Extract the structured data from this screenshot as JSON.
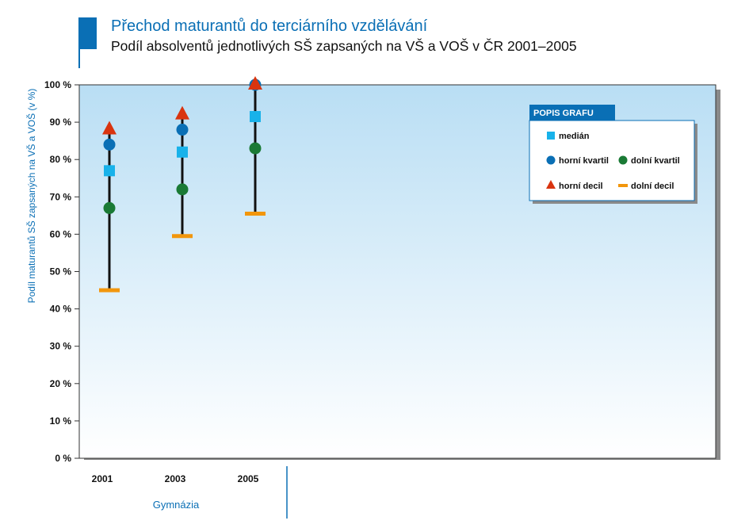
{
  "header": {
    "title": "Přechod maturantů do terciárního vzdělávání",
    "subtitle": "Podíl absolventů jednotlivých SŠ zapsaných na VŠ a VOŠ v ČR 2001–2005"
  },
  "chart_data": {
    "type": "scatter",
    "subtype": "box-range (decile/quartile/median)",
    "ylabel": "Podíl maturantů SŠ zapsaných na VŠ a VOŠ (v %)",
    "xlabel": "",
    "group_label": "Gymnázia",
    "ylim": [
      0,
      100
    ],
    "yticks": [
      "0 %",
      "10 %",
      "20 %",
      "30 %",
      "40 %",
      "50 %",
      "60 %",
      "70 %",
      "80 %",
      "90 %",
      "100 %"
    ],
    "grid": false,
    "categories": [
      "2001",
      "2003",
      "2005"
    ],
    "series": [
      {
        "name": "horní decil",
        "marker": "triangle",
        "color": "#d9340f",
        "values": [
          88,
          92,
          100
        ]
      },
      {
        "name": "horní kvartil",
        "marker": "circle",
        "color": "#0a6fb5",
        "values": [
          84,
          88,
          100
        ]
      },
      {
        "name": "medián",
        "marker": "square",
        "color": "#18b2ea",
        "values": [
          77,
          82,
          91.5
        ]
      },
      {
        "name": "dolní kvartil",
        "marker": "circle",
        "color": "#1a7a35",
        "values": [
          67,
          72,
          83
        ]
      },
      {
        "name": "dolní decil",
        "marker": "dash",
        "color": "#f2960c",
        "values": [
          45,
          59.5,
          65.5
        ]
      }
    ],
    "legend": {
      "title": "POPIS GRAFU",
      "position": "top-right",
      "items": [
        "medián",
        "horní kvartil",
        "dolní kvartil",
        "horní decil",
        "dolní decil"
      ]
    }
  }
}
